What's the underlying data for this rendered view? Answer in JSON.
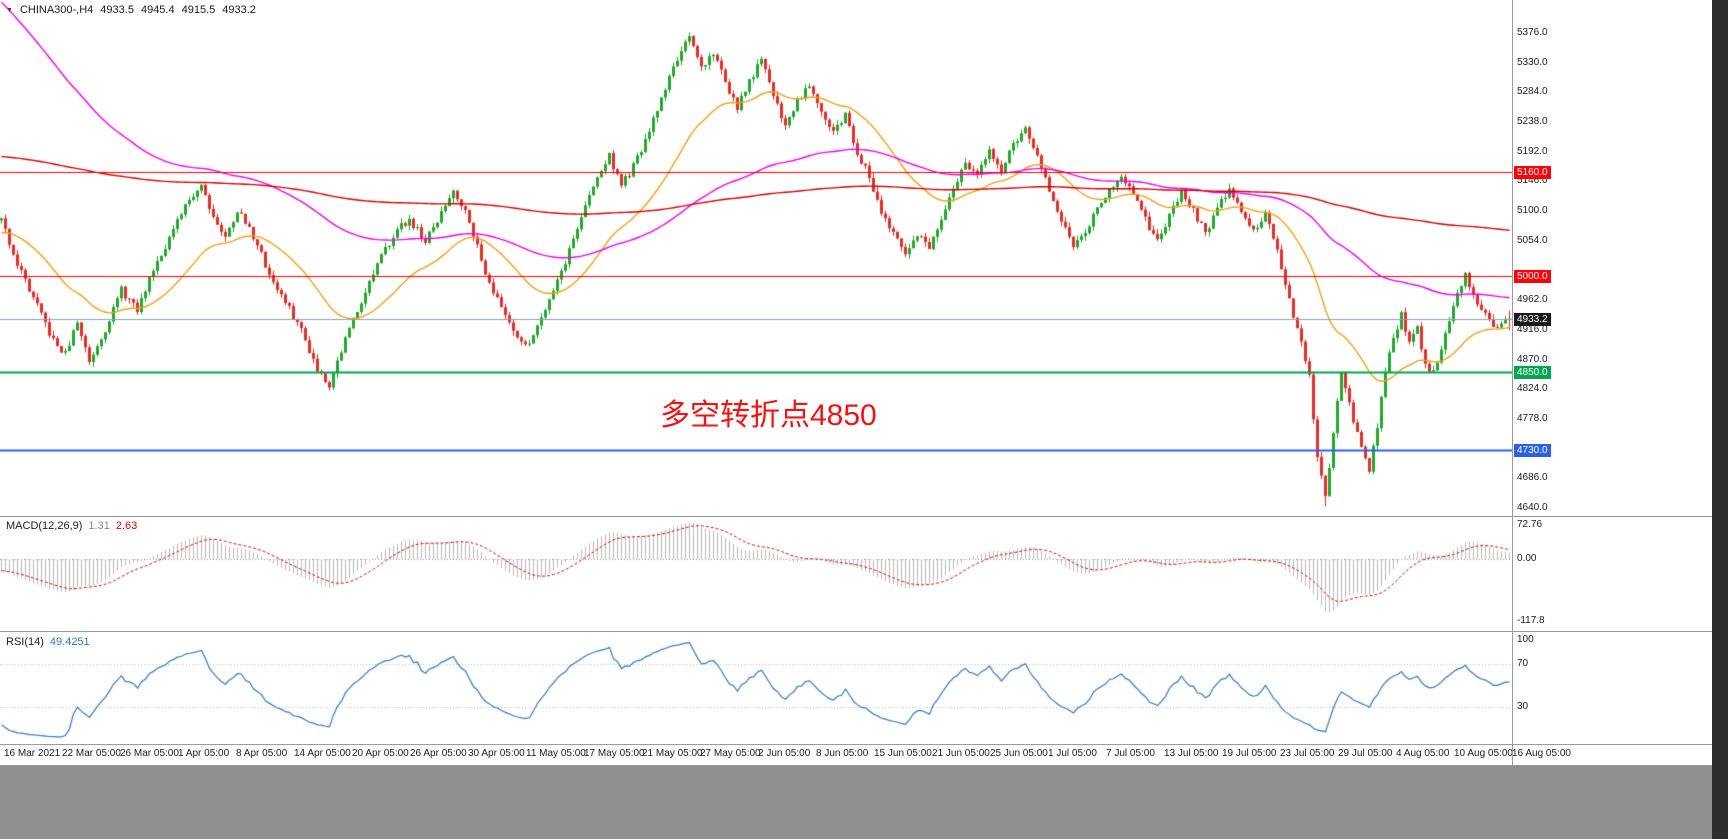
{
  "quote_bar": {
    "symbol_period": "CHINA300-,H4",
    "open": "4933.5",
    "high": "4945.4",
    "low": "4915.5",
    "close": "4933.2"
  },
  "chart_data": {
    "type": "candlestick",
    "symbol": "CHINA300-",
    "timeframe": "H4",
    "current_candle": {
      "open": 4933.5,
      "high": 4945.4,
      "low": 4915.5,
      "close": 4933.2
    },
    "annotation": {
      "text": "多空转折点4850",
      "color": "#f01414"
    },
    "y_axis": {
      "ticks": [
        "5376.0",
        "5330.0",
        "5284.0",
        "5238.0",
        "5192.0",
        "5146.0",
        "5100.0",
        "5054.0",
        "4962.0",
        "4916.0",
        "4870.0",
        "4824.0",
        "4778.0",
        "4686.0",
        "4640.0"
      ]
    },
    "x_labels": [
      "16 Mar 2021",
      "22 Mar 05:00",
      "26 Mar 05:00",
      "1 Apr 05:00",
      "8 Apr 05:00",
      "14 Apr 05:00",
      "20 Apr 05:00",
      "26 Apr 05:00",
      "30 Apr 05:00",
      "11 May 05:00",
      "17 May 05:00",
      "21 May 05:00",
      "27 May 05:00",
      "2 Jun 05:00",
      "8 Jun 05:00",
      "15 Jun 05:00",
      "21 Jun 05:00",
      "25 Jun 05:00",
      "1 Jul 05:00",
      "7 Jul 05:00",
      "13 Jul 05:00",
      "19 Jul 05:00",
      "23 Jul 05:00",
      "29 Jul 05:00",
      "4 Aug 05:00",
      "10 Aug 05:00",
      "16 Aug 05:00"
    ],
    "horizontal_lines": [
      {
        "value": 5160.0,
        "label": "5160.0",
        "color": "#fb0207",
        "width": 1
      },
      {
        "value": 5000.0,
        "label": "5000.0",
        "color": "#fb0207",
        "width": 1
      },
      {
        "value": 4850.0,
        "label": "4850.0",
        "color": "#00a64f",
        "width": 2
      },
      {
        "value": 4730.0,
        "label": "4730.0",
        "color": "#2e60e6",
        "width": 2
      }
    ],
    "current_price": {
      "value": 4933.2,
      "label": "4933.2",
      "line_color": "#89a0bc",
      "label_bg": "#1a1a1a"
    },
    "candles": {
      "count": 378,
      "seed": 11,
      "noise": 12,
      "wick": 8,
      "up_color": "#25a42f",
      "down_color": "#e22e29",
      "extremes": [
        {
          "i": 172,
          "h": 5376.0
        },
        {
          "i": 331,
          "l": 4642.5
        }
      ],
      "path": [
        [
          -60,
          5255
        ],
        [
          -48,
          5180
        ],
        [
          -36,
          5215
        ],
        [
          -24,
          5195
        ],
        [
          -12,
          5140
        ],
        [
          0,
          5085
        ],
        [
          4,
          5020
        ],
        [
          8,
          4965
        ],
        [
          13,
          4898
        ],
        [
          16,
          4878
        ],
        [
          19,
          4928
        ],
        [
          22,
          4868
        ],
        [
          26,
          4918
        ],
        [
          30,
          4978
        ],
        [
          34,
          4945
        ],
        [
          38,
          5012
        ],
        [
          43,
          5070
        ],
        [
          47,
          5118
        ],
        [
          50,
          5142
        ],
        [
          53,
          5092
        ],
        [
          56,
          5058
        ],
        [
          59,
          5102
        ],
        [
          63,
          5062
        ],
        [
          67,
          5002
        ],
        [
          71,
          4958
        ],
        [
          75,
          4916
        ],
        [
          79,
          4856
        ],
        [
          82,
          4832
        ],
        [
          86,
          4902
        ],
        [
          90,
          4962
        ],
        [
          94,
          5016
        ],
        [
          98,
          5064
        ],
        [
          102,
          5088
        ],
        [
          106,
          5052
        ],
        [
          110,
          5096
        ],
        [
          113,
          5134
        ],
        [
          117,
          5088
        ],
        [
          120,
          5022
        ],
        [
          124,
          4962
        ],
        [
          128,
          4918
        ],
        [
          131,
          4888
        ],
        [
          134,
          4922
        ],
        [
          137,
          4966
        ],
        [
          141,
          5022
        ],
        [
          145,
          5092
        ],
        [
          149,
          5152
        ],
        [
          152,
          5186
        ],
        [
          155,
          5140
        ],
        [
          158,
          5168
        ],
        [
          162,
          5222
        ],
        [
          166,
          5292
        ],
        [
          169,
          5338
        ],
        [
          172,
          5366
        ],
        [
          175,
          5322
        ],
        [
          178,
          5346
        ],
        [
          181,
          5302
        ],
        [
          184,
          5258
        ],
        [
          187,
          5302
        ],
        [
          190,
          5332
        ],
        [
          193,
          5282
        ],
        [
          196,
          5232
        ],
        [
          199,
          5272
        ],
        [
          202,
          5298
        ],
        [
          205,
          5258
        ],
        [
          208,
          5222
        ],
        [
          211,
          5248
        ],
        [
          214,
          5192
        ],
        [
          217,
          5152
        ],
        [
          220,
          5102
        ],
        [
          223,
          5062
        ],
        [
          226,
          5032
        ],
        [
          229,
          5066
        ],
        [
          232,
          5042
        ],
        [
          235,
          5082
        ],
        [
          238,
          5132
        ],
        [
          241,
          5178
        ],
        [
          244,
          5152
        ],
        [
          247,
          5196
        ],
        [
          250,
          5162
        ],
        [
          253,
          5202
        ],
        [
          256,
          5228
        ],
        [
          259,
          5182
        ],
        [
          262,
          5132
        ],
        [
          265,
          5082
        ],
        [
          268,
          5046
        ],
        [
          271,
          5072
        ],
        [
          274,
          5102
        ],
        [
          277,
          5136
        ],
        [
          280,
          5156
        ],
        [
          283,
          5122
        ],
        [
          286,
          5086
        ],
        [
          289,
          5052
        ],
        [
          292,
          5092
        ],
        [
          295,
          5128
        ],
        [
          298,
          5102
        ],
        [
          301,
          5066
        ],
        [
          304,
          5102
        ],
        [
          307,
          5136
        ],
        [
          310,
          5102
        ],
        [
          313,
          5066
        ],
        [
          316,
          5092
        ],
        [
          319,
          5042
        ],
        [
          322,
          4962
        ],
        [
          325,
          4892
        ],
        [
          327,
          4842
        ],
        [
          329,
          4716
        ],
        [
          331,
          4654
        ],
        [
          333,
          4760
        ],
        [
          335,
          4852
        ],
        [
          337,
          4800
        ],
        [
          340,
          4730
        ],
        [
          342,
          4700
        ],
        [
          344,
          4762
        ],
        [
          346,
          4852
        ],
        [
          348,
          4906
        ],
        [
          350,
          4938
        ],
        [
          352,
          4895
        ],
        [
          354,
          4920
        ],
        [
          356,
          4862
        ],
        [
          358,
          4850
        ],
        [
          360,
          4890
        ],
        [
          363,
          4952
        ],
        [
          366,
          5002
        ],
        [
          368,
          4970
        ],
        [
          371,
          4938
        ],
        [
          374,
          4918
        ],
        [
          377,
          4933.2
        ]
      ]
    },
    "moving_averages": [
      {
        "period": 30,
        "color": "#f0a019",
        "seed": 5065
      },
      {
        "period": 110,
        "color": "#f000f0",
        "seed": 5430
      },
      {
        "period": 450,
        "color": "#d40000",
        "seed": 5185
      }
    ],
    "indicators": {
      "macd": {
        "label": "MACD(12,26,9)",
        "main_value": "1.31",
        "signal_value": "2.63",
        "fast": 12,
        "slow": 26,
        "signal": 9,
        "axis_labels": [
          "72.76",
          "0.00",
          "-117.8"
        ],
        "histogram_color": "#b9b9b9",
        "signal_color": "#d01010"
      },
      "rsi": {
        "label": "RSI(14)",
        "value": "49.4251",
        "period": 14,
        "axis_labels": [
          "100",
          "70",
          "30"
        ],
        "levels": [
          70,
          30
        ],
        "line_color": "#3577c8"
      }
    }
  }
}
